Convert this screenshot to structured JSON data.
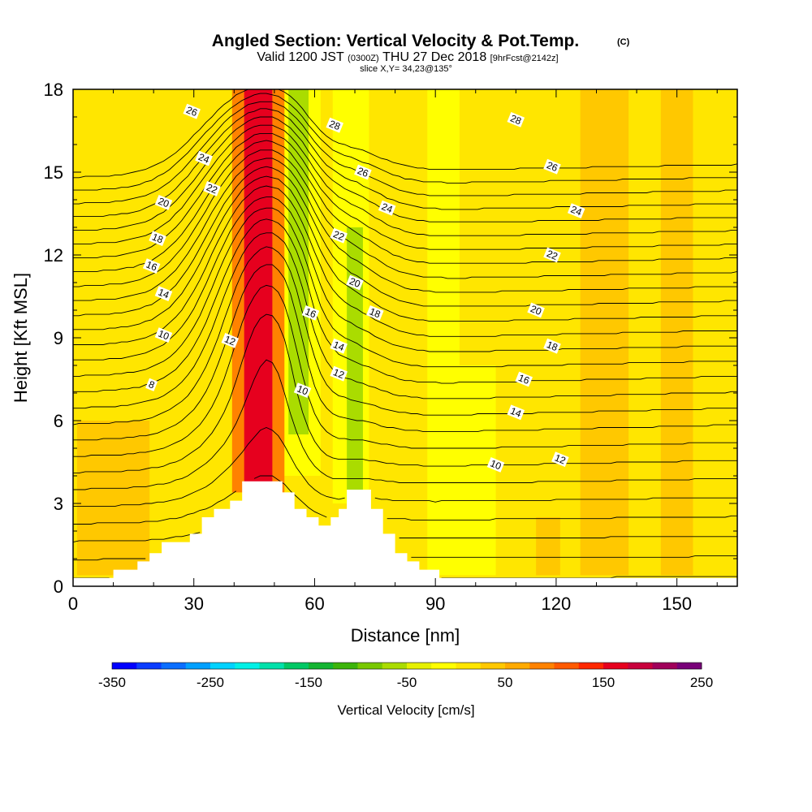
{
  "chart_data": {
    "type": "contour",
    "title": "Angled Section: Vertical Velocity & Pot.Temp.",
    "title_mark": "(C)",
    "subtitle": {
      "valid": "Valid 1200 JST",
      "utc": "(0300Z)",
      "date": "THU 27 Dec 2018",
      "forecast": "[9hrFcst@2142z]"
    },
    "slice_text": "slice X,Y= 34,23@135°",
    "xlabel": "Distance [nm]",
    "ylabel": "Height [Kft MSL]",
    "xlim": [
      0,
      165
    ],
    "ylim": [
      0,
      18
    ],
    "xticks": [
      0,
      30,
      60,
      90,
      120,
      150
    ],
    "yticks": [
      0,
      3,
      6,
      9,
      12,
      15,
      18
    ],
    "terrain": [
      [
        0,
        0.3
      ],
      [
        10,
        0.3
      ],
      [
        10,
        0.6
      ],
      [
        16,
        0.6
      ],
      [
        16,
        0.9
      ],
      [
        19,
        0.9
      ],
      [
        19,
        1.2
      ],
      [
        22,
        1.2
      ],
      [
        22,
        1.6
      ],
      [
        29,
        1.6
      ],
      [
        29,
        1.9
      ],
      [
        32,
        1.9
      ],
      [
        32,
        2.5
      ],
      [
        35,
        2.5
      ],
      [
        35,
        2.8
      ],
      [
        39,
        2.8
      ],
      [
        39,
        3.1
      ],
      [
        42,
        3.1
      ],
      [
        42,
        3.8
      ],
      [
        52,
        3.8
      ],
      [
        52,
        3.4
      ],
      [
        55,
        3.4
      ],
      [
        55,
        2.8
      ],
      [
        58,
        2.8
      ],
      [
        58,
        2.5
      ],
      [
        61,
        2.5
      ],
      [
        61,
        2.2
      ],
      [
        64,
        2.2
      ],
      [
        64,
        2.5
      ],
      [
        66,
        2.5
      ],
      [
        66,
        2.8
      ],
      [
        68,
        2.8
      ],
      [
        68,
        3.5
      ],
      [
        74,
        3.5
      ],
      [
        74,
        2.8
      ],
      [
        77,
        2.8
      ],
      [
        77,
        1.9
      ],
      [
        80,
        1.9
      ],
      [
        80,
        1.2
      ],
      [
        83,
        1.2
      ],
      [
        83,
        0.9
      ],
      [
        86,
        0.9
      ],
      [
        86,
        0.6
      ],
      [
        91,
        0.6
      ],
      [
        91,
        0.3
      ],
      [
        165,
        0.3
      ]
    ],
    "velocity_field": {
      "background": 20,
      "bands": [
        {
          "x_center": 46,
          "half_width": 3.5,
          "y_from": 3.4,
          "y_to": 18,
          "value": 150
        },
        {
          "x_center": 46,
          "half_width": 6.5,
          "y_from": 3.4,
          "y_to": 18,
          "value": 75
        },
        {
          "x_center": 56,
          "half_width": 2.5,
          "y_from": 5.5,
          "y_to": 18,
          "value": -75
        },
        {
          "x_center": 56,
          "half_width": 5.5,
          "y_from": 4.0,
          "y_to": 18,
          "value": -25
        },
        {
          "x_center": 70,
          "half_width": 2.0,
          "y_from": 3.0,
          "y_to": 13,
          "value": -75
        },
        {
          "x_center": 69,
          "half_width": 4.5,
          "y_from": 3.0,
          "y_to": 18,
          "value": -25
        },
        {
          "x_center": 92,
          "half_width": 4.0,
          "y_from": 0.4,
          "y_to": 18,
          "value": -20
        },
        {
          "x_center": 100,
          "half_width": 5.0,
          "y_from": 0.4,
          "y_to": 8,
          "value": -20
        },
        {
          "x_center": 10,
          "half_width": 9.0,
          "y_from": 0.4,
          "y_to": 6,
          "value": 40
        },
        {
          "x_center": 132,
          "half_width": 6.0,
          "y_from": 0.4,
          "y_to": 18,
          "value": 40
        },
        {
          "x_center": 118,
          "half_width": 3.0,
          "y_from": 0.4,
          "y_to": 2.5,
          "value": 40
        },
        {
          "x_center": 150,
          "half_width": 4.0,
          "y_from": 0.4,
          "y_to": 18,
          "value": 40
        }
      ]
    },
    "theta_contours": {
      "values": [
        1,
        2,
        3,
        4,
        5,
        6,
        7,
        8,
        9,
        10,
        11,
        12,
        13,
        14,
        15,
        16,
        17,
        18,
        19,
        20,
        21,
        22,
        23,
        24,
        25,
        26,
        27,
        28
      ],
      "labeled": [
        8,
        10,
        12,
        14,
        16,
        18,
        20,
        22,
        24,
        26,
        28
      ],
      "label_points": [
        {
          "text": "26",
          "x": 29.5,
          "y": 17.2
        },
        {
          "text": "24",
          "x": 32.5,
          "y": 15.5
        },
        {
          "text": "22",
          "x": 34.5,
          "y": 14.4
        },
        {
          "text": "20",
          "x": 22.5,
          "y": 13.9
        },
        {
          "text": "18",
          "x": 21.0,
          "y": 12.6
        },
        {
          "text": "16",
          "x": 19.5,
          "y": 11.6
        },
        {
          "text": "14",
          "x": 22.5,
          "y": 10.6
        },
        {
          "text": "10",
          "x": 22.5,
          "y": 9.1
        },
        {
          "text": "12",
          "x": 39.0,
          "y": 8.9
        },
        {
          "text": "8",
          "x": 19.5,
          "y": 7.3
        },
        {
          "text": "28",
          "x": 65.0,
          "y": 16.7
        },
        {
          "text": "26",
          "x": 72.0,
          "y": 15.0
        },
        {
          "text": "24",
          "x": 78.0,
          "y": 13.7
        },
        {
          "text": "22",
          "x": 66.0,
          "y": 12.7
        },
        {
          "text": "20",
          "x": 70.0,
          "y": 11.0
        },
        {
          "text": "18",
          "x": 75.0,
          "y": 9.9
        },
        {
          "text": "16",
          "x": 59.0,
          "y": 9.9
        },
        {
          "text": "14",
          "x": 66.0,
          "y": 8.7
        },
        {
          "text": "12",
          "x": 66.0,
          "y": 7.7
        },
        {
          "text": "10",
          "x": 57.0,
          "y": 7.1
        },
        {
          "text": "28",
          "x": 110.0,
          "y": 16.9
        },
        {
          "text": "26",
          "x": 119.0,
          "y": 15.2
        },
        {
          "text": "24",
          "x": 125.0,
          "y": 13.6
        },
        {
          "text": "22",
          "x": 119.0,
          "y": 12.0
        },
        {
          "text": "20",
          "x": 115.0,
          "y": 10.0
        },
        {
          "text": "18",
          "x": 119.0,
          "y": 8.7
        },
        {
          "text": "16",
          "x": 112.0,
          "y": 7.5
        },
        {
          "text": "14",
          "x": 110.0,
          "y": 6.3
        },
        {
          "text": "10",
          "x": 105.0,
          "y": 4.4
        },
        {
          "text": "12",
          "x": 121.0,
          "y": 4.6
        }
      ]
    },
    "colorbar": {
      "title": "Vertical Velocity [cm/s]",
      "min": -350,
      "max": 250,
      "step": 25,
      "tick_values": [
        -350,
        -250,
        -150,
        -50,
        50,
        150,
        250
      ],
      "tick_labels": [
        "-350",
        "-250",
        "-150",
        "-50",
        "50",
        "150",
        "250"
      ],
      "colors": [
        "#0000ff",
        "#0a3cff",
        "#0a6eff",
        "#00a0ff",
        "#00d2ff",
        "#00f0e6",
        "#00e1aa",
        "#00c864",
        "#14b432",
        "#3cb40a",
        "#78c800",
        "#aadc00",
        "#e6f000",
        "#ffff00",
        "#ffe600",
        "#ffc800",
        "#ffaa00",
        "#ff8200",
        "#ff5a00",
        "#ff2800",
        "#e6001e",
        "#c8003c",
        "#a0005a",
        "#780078"
      ]
    }
  }
}
